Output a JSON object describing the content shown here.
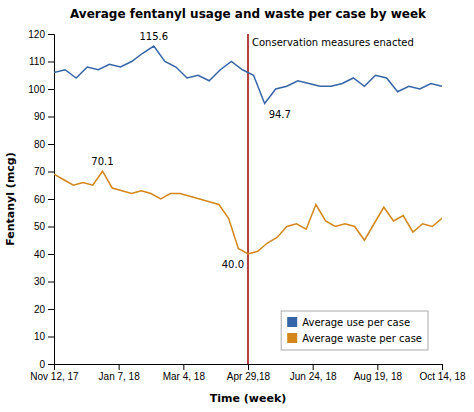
{
  "chart_data": {
    "type": "line",
    "title": "Average fentanyl usage and waste per case by week",
    "x_label": "Time (week)",
    "y_label": "Fentanyl (mcg)",
    "xlim": [
      0,
      35
    ],
    "xticks": [
      {
        "value": 0,
        "label": "Nov 12, 17"
      },
      {
        "value": 5.833333333333333,
        "label": "Jan 7, 18"
      },
      {
        "value": 11.666666666666666,
        "label": "Mar 4, 18"
      },
      {
        "value": 17.5,
        "label": "Apr 29,18"
      },
      {
        "value": 23.333333333333332,
        "label": "Jun 24, 18"
      },
      {
        "value": 29.166666666666668,
        "label": "Aug 19, 18"
      },
      {
        "value": 35,
        "label": "Oct 14, 18"
      }
    ],
    "ylim": [
      0,
      120
    ],
    "yticks": [
      0,
      10,
      20,
      30,
      40,
      50,
      60,
      70,
      80,
      90,
      100,
      110,
      120
    ],
    "grid": false,
    "legend": "lower right",
    "series": [
      {
        "name": "Average use per case",
        "color": "#3565a8",
        "x": [
          0,
          1,
          2,
          3,
          4,
          5,
          6,
          7,
          8,
          9,
          10,
          11,
          12,
          13,
          14,
          15,
          16,
          17,
          18,
          19,
          20,
          21,
          22,
          23,
          24,
          25,
          26,
          27,
          28,
          29,
          30,
          31,
          32,
          33,
          34,
          35
        ],
        "values": [
          106,
          107,
          104,
          108,
          107,
          109,
          108,
          110,
          113,
          115.6,
          110,
          108,
          104,
          105,
          103,
          107,
          110,
          107,
          105,
          94.7,
          100,
          101,
          103,
          102,
          101,
          101,
          102,
          104,
          101,
          105,
          104,
          99,
          101,
          100,
          102,
          101
        ]
      },
      {
        "name": "Average waste per case",
        "color": "#d4861a",
        "x": [
          0,
          0.875,
          1.75,
          2.625,
          3.5,
          4.375,
          5.25,
          6.125,
          7,
          7.875,
          8.75,
          9.625,
          10.5,
          11.375,
          12.25,
          13.125,
          14,
          14.875,
          15.75,
          16.625,
          17.5,
          18.375,
          19.25,
          20.125,
          21,
          21.875,
          22.75,
          23.625,
          24.5,
          25.375,
          26.25,
          27.125,
          28,
          28.875,
          29.75,
          30.625,
          31.5,
          32.375,
          33.25,
          34.125,
          35
        ],
        "values": [
          69,
          67,
          65,
          66,
          65,
          70.1,
          64,
          63,
          62,
          63,
          62,
          60,
          62,
          62,
          61,
          60,
          59,
          58,
          53,
          42,
          40,
          41,
          44,
          46,
          50,
          51,
          49,
          58,
          52,
          50,
          51,
          50,
          45,
          51,
          57,
          52,
          54,
          48,
          51,
          50,
          53
        ]
      }
    ],
    "vline": {
      "x": 17.5,
      "label": "Conservation measures enacted",
      "color": "#9b0000"
    },
    "annotations": [
      {
        "text": "115.6",
        "x": 9,
        "y": 115.6
      },
      {
        "text": "70.1",
        "x": 4.375,
        "y": 70.1
      },
      {
        "text": "94.7",
        "x": 19,
        "y": 94.7
      },
      {
        "text": "40.0",
        "x": 17.5,
        "y": 40
      }
    ]
  }
}
